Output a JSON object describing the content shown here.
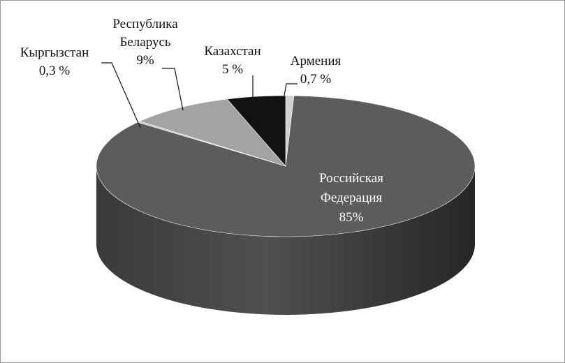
{
  "chart_data": {
    "type": "pie3d",
    "categories": [
      "Армения",
      "Российская Федерация",
      "Кыргызстан",
      "Республика Беларусь",
      "Казахстан"
    ],
    "values": [
      0.7,
      85,
      0.3,
      9,
      5
    ],
    "value_labels": [
      "0,7 %",
      "85%",
      "0,3 %",
      "9%",
      "5 %"
    ],
    "colors": [
      "#d0d0d0",
      "#5c5c5c",
      "#c4c4c4",
      "#a3a3a3",
      "#121212"
    ]
  }
}
